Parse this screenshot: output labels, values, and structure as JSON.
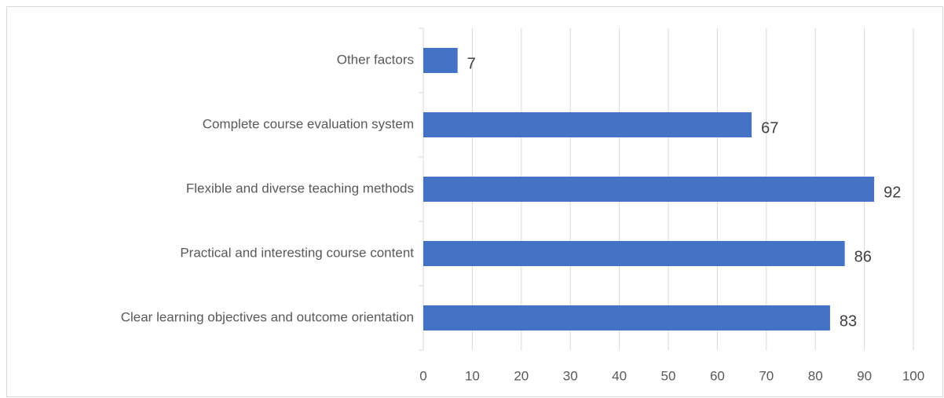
{
  "chart_data": {
    "type": "barh",
    "categories": [
      "Other factors",
      "Complete course evaluation system",
      "Flexible and diverse teaching methods",
      "Practical and interesting course content",
      "Clear learning objectives and outcome orientation"
    ],
    "values": [
      7,
      67,
      92,
      86,
      83
    ],
    "color": "#4472c4",
    "xlim": [
      0,
      100
    ],
    "xticks": [
      0,
      10,
      20,
      30,
      40,
      50,
      60,
      70,
      80,
      90,
      100
    ],
    "grid": true
  }
}
